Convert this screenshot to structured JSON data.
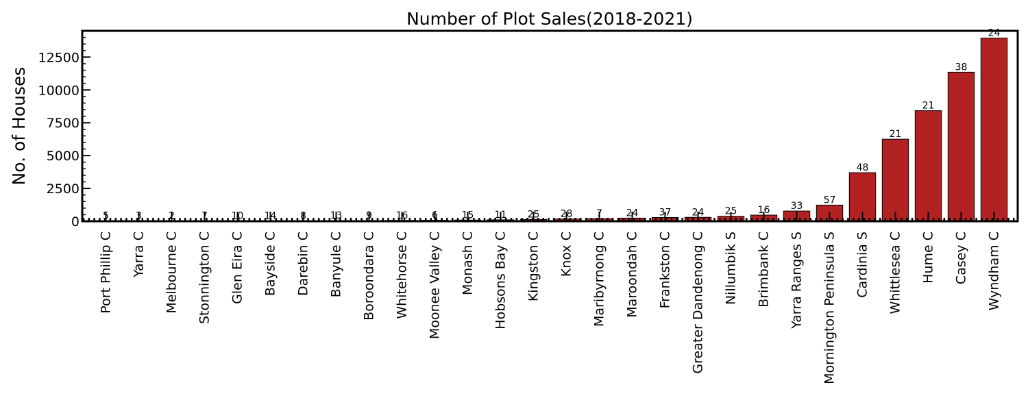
{
  "chart_data": {
    "type": "bar",
    "title": "Number of Plot Sales(2018-2021)",
    "xlabel": "",
    "ylabel": "No. of Houses",
    "ylim": [
      0,
      14500
    ],
    "yticks": [
      0,
      2500,
      5000,
      7500,
      10000,
      12500
    ],
    "ytick_labels": [
      "0",
      "2500",
      "5000",
      "7500",
      "10000",
      "12500"
    ],
    "bar_color": "#b22222",
    "edge_color": "#000000",
    "grid": false,
    "categories": [
      "Port Phillip C",
      "Yarra C",
      "Melbourne C",
      "Stonnington C",
      "Glen Eira C",
      "Bayside C",
      "Darebin C",
      "Banyule C",
      "Boroondara C",
      "Whitehorse C",
      "Moonee Valley C",
      "Monash C",
      "Hobsons Bay C",
      "Kingston C",
      "Knox C",
      "Maribyrnong C",
      "Maroondah C",
      "Frankston C",
      "Greater Dandenong C",
      "Nillumbik S",
      "Brimbank C",
      "Yarra Ranges S",
      "Mornington Peninsula S",
      "Cardinia S",
      "Whittlesea C",
      "Hume C",
      "Casey C",
      "Wyndham C"
    ],
    "values": [
      5,
      8,
      10,
      14,
      22,
      30,
      35,
      45,
      55,
      65,
      75,
      90,
      110,
      140,
      175,
      200,
      240,
      290,
      300,
      380,
      470,
      780,
      1230,
      3700,
      6250,
      8420,
      11350,
      13950
    ],
    "data_labels": [
      "5",
      "3",
      "2",
      "7",
      "10",
      "14",
      "8",
      "13",
      "9",
      "16",
      "6",
      "15",
      "11",
      "25",
      "28",
      "7",
      "24",
      "37",
      "24",
      "25",
      "16",
      "33",
      "57",
      "48",
      "21",
      "21",
      "38",
      "24"
    ]
  }
}
